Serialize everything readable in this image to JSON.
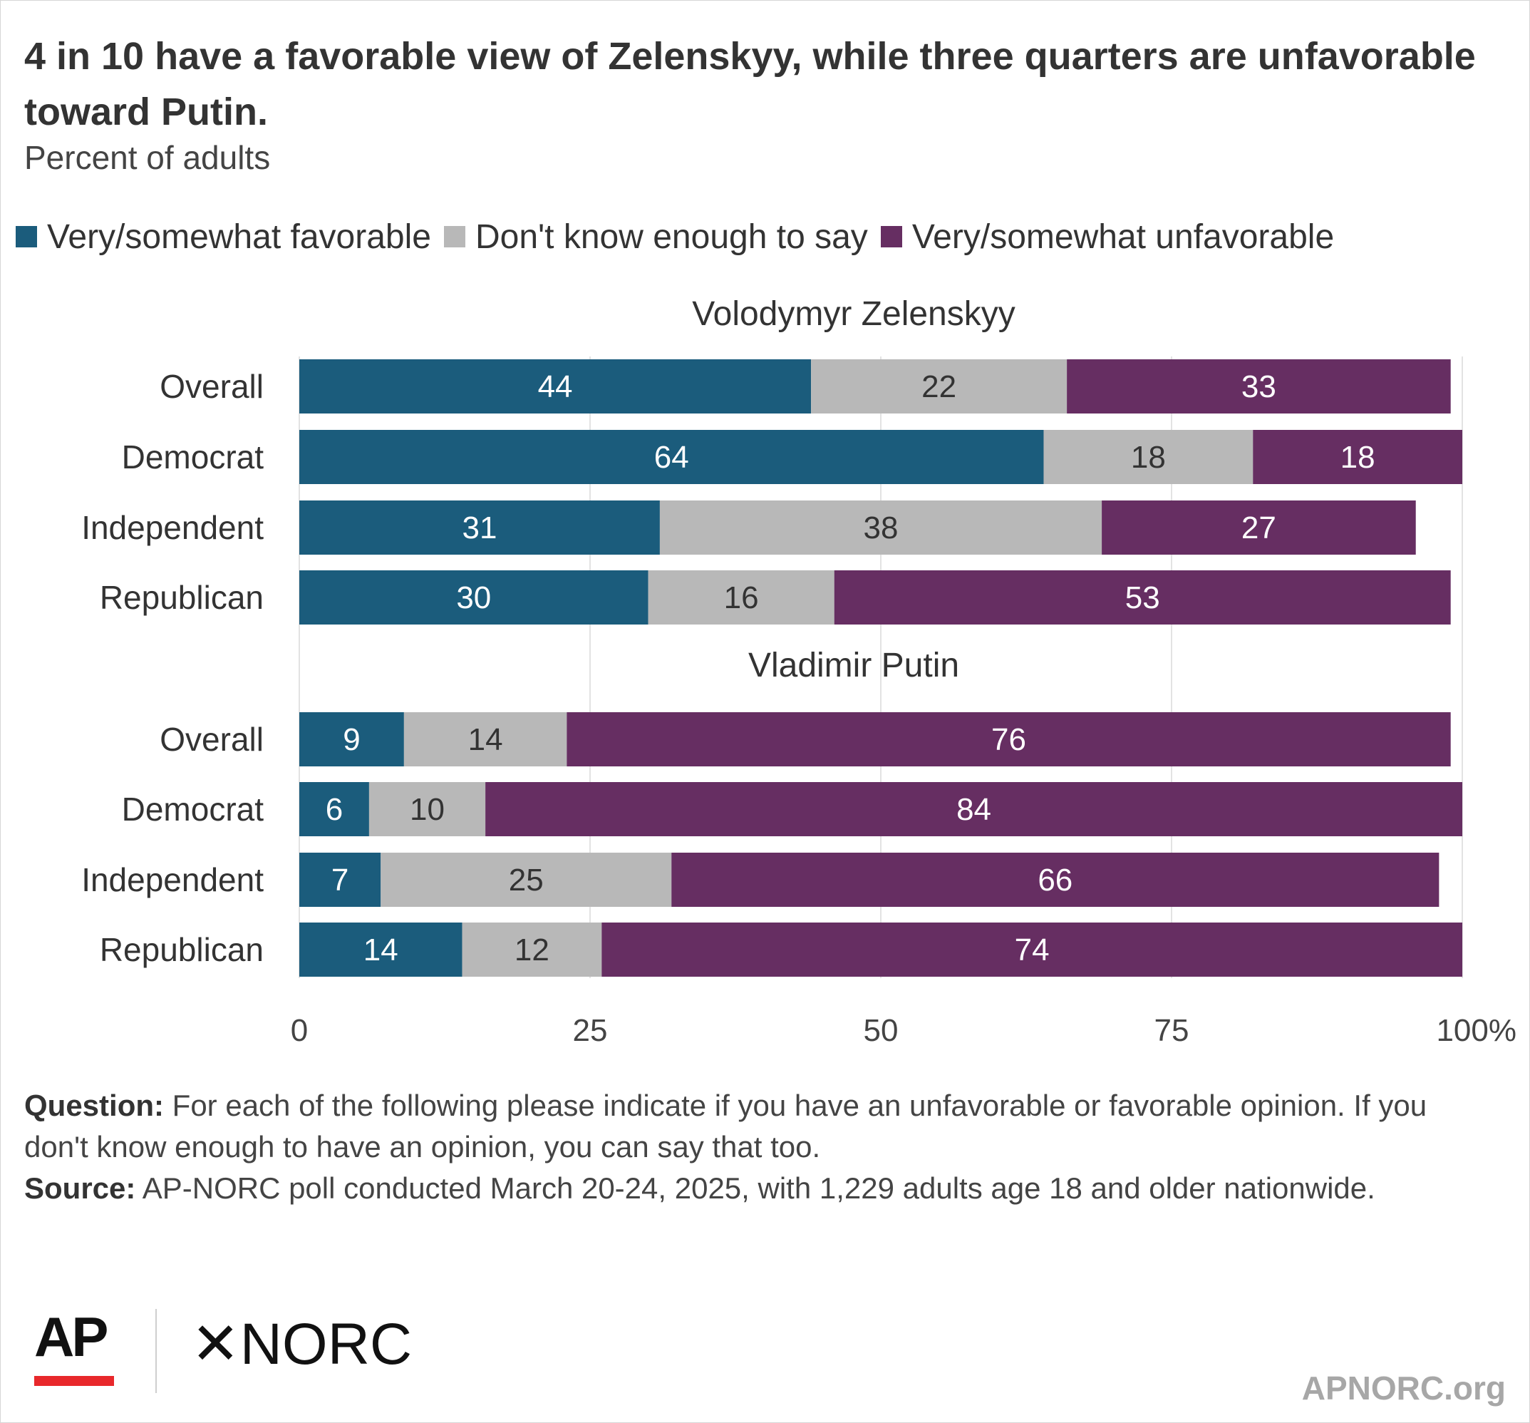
{
  "title": "4 in 10 have a favorable view of Zelenskyy, while three quarters are unfavorable toward Putin.",
  "subtitle": "Percent of adults",
  "legend": [
    {
      "label": "Very/somewhat favorable",
      "color": "#1b5c7c"
    },
    {
      "label": "Don't know enough to say",
      "color": "#b8b8b8"
    },
    {
      "label": "Very/somewhat unfavorable",
      "color": "#662e62"
    }
  ],
  "chart_data": {
    "type": "bar",
    "orientation": "horizontal",
    "stacked": true,
    "xlim": [
      0,
      100
    ],
    "x_ticks": [
      "0",
      "25",
      "50",
      "75",
      "100%"
    ],
    "grid": true,
    "groups": [
      {
        "name": "Volodymyr Zelenskyy",
        "categories": [
          "Overall",
          "Democrat",
          "Independent",
          "Republican"
        ],
        "series": [
          {
            "name": "Very/somewhat favorable",
            "values": [
              44,
              64,
              31,
              30
            ]
          },
          {
            "name": "Don't know enough to say",
            "values": [
              22,
              18,
              38,
              16
            ]
          },
          {
            "name": "Very/somewhat unfavorable",
            "values": [
              33,
              18,
              27,
              53
            ]
          }
        ]
      },
      {
        "name": "Vladimir Putin",
        "categories": [
          "Overall",
          "Democrat",
          "Independent",
          "Republican"
        ],
        "series": [
          {
            "name": "Very/somewhat favorable",
            "values": [
              9,
              6,
              7,
              14
            ]
          },
          {
            "name": "Don't know enough to say",
            "values": [
              14,
              10,
              25,
              12
            ]
          },
          {
            "name": "Very/somewhat unfavorable",
            "values": [
              76,
              84,
              66,
              74
            ]
          }
        ]
      }
    ]
  },
  "notes": {
    "question_label": "Question:",
    "question_text": " For each of the following please indicate if you have an unfavorable or favorable opinion. If you don't know enough to have an opinion, you can say that too.",
    "source_label": "Source:",
    "source_text": " AP-NORC poll conducted March 20-24, 2025, with 1,229 adults age 18 and older nationwide."
  },
  "logos": {
    "ap": "AP",
    "norc": "NORC",
    "norc_mark": "✕",
    "site": "APNORC.org"
  }
}
